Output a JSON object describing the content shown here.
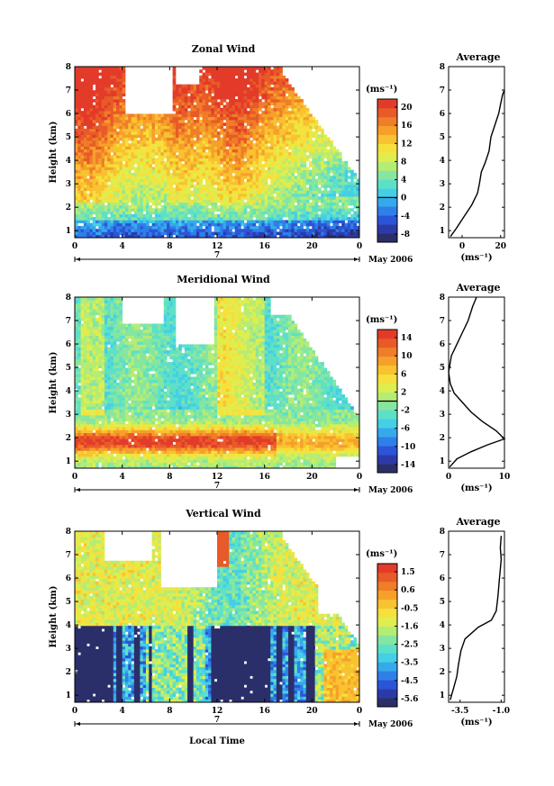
{
  "chart_data": [
    {
      "type": "heatmap",
      "title": "Zonal Wind",
      "ylabel": "Height (km)",
      "ylim": [
        0.7,
        8
      ],
      "yticks": [
        "1",
        "2",
        "3",
        "4",
        "5",
        "6",
        "7",
        "8"
      ],
      "xlim": [
        0,
        24
      ],
      "xticks": [
        "0",
        "4",
        "8",
        "12",
        "16",
        "20",
        "0"
      ],
      "day_label": "7",
      "date_label": "May 2006",
      "colorbar_unit": "(ms⁻¹)",
      "colorbar_ticks": [
        "20",
        "16",
        "12",
        "8",
        "4",
        "0",
        "-4",
        "-8"
      ],
      "colorbar_range": [
        -10,
        22
      ],
      "colorbar_contour": 0,
      "average": {
        "title": "Average",
        "xlabel": "(ms⁻¹)",
        "xticks": [
          "0",
          "20"
        ],
        "xlim": [
          -7,
          22
        ],
        "ylim": [
          0.7,
          8
        ],
        "yticks": [
          "1",
          "2",
          "3",
          "4",
          "5",
          "6",
          "7",
          "8"
        ],
        "profile_x": [
          -6,
          -3,
          1,
          5,
          8,
          9,
          10,
          12,
          14,
          15,
          17,
          19,
          20,
          21,
          22
        ],
        "profile_y": [
          0.75,
          1.1,
          1.6,
          2.1,
          2.6,
          3.0,
          3.5,
          3.9,
          4.4,
          5.0,
          5.5,
          6.0,
          6.4,
          6.8,
          7.0
        ]
      }
    },
    {
      "type": "heatmap",
      "title": "Meridional Wind",
      "ylabel": "Height (km)",
      "ylim": [
        0.7,
        8
      ],
      "yticks": [
        "1",
        "2",
        "3",
        "4",
        "5",
        "6",
        "7",
        "8"
      ],
      "xlim": [
        0,
        24
      ],
      "xticks": [
        "0",
        "4",
        "8",
        "12",
        "16",
        "20",
        "0"
      ],
      "day_label": "7",
      "date_label": "May 2006",
      "colorbar_unit": "(ms⁻¹)",
      "colorbar_ticks": [
        "14",
        "10",
        "6",
        "2",
        "-2",
        "-6",
        "-10",
        "-14"
      ],
      "colorbar_range": [
        -16,
        16
      ],
      "colorbar_contour": 0,
      "average": {
        "title": "Average",
        "xlabel": "(ms⁻¹)",
        "xticks": [
          "0",
          "10"
        ],
        "xlim": [
          0,
          10
        ],
        "ylim": [
          0.7,
          8
        ],
        "yticks": [
          "1",
          "2",
          "3",
          "4",
          "5",
          "6",
          "7",
          "8"
        ],
        "profile_x": [
          0.2,
          1.5,
          4,
          7,
          10,
          8.5,
          6,
          4,
          2.5,
          1,
          0.3,
          0,
          0.5,
          1.5,
          2.5,
          3.5,
          4.3,
          5
        ],
        "profile_y": [
          0.75,
          1.1,
          1.4,
          1.7,
          1.95,
          2.3,
          2.7,
          3.1,
          3.5,
          3.9,
          4.3,
          4.8,
          5.5,
          6.0,
          6.5,
          7.0,
          7.6,
          8.0
        ]
      }
    },
    {
      "type": "heatmap",
      "title": "Vertical Wind",
      "ylabel": "Height (km)",
      "xlabel": "Local Time",
      "ylim": [
        0.7,
        8
      ],
      "yticks": [
        "1",
        "2",
        "3",
        "4",
        "5",
        "6",
        "7",
        "8"
      ],
      "xlim": [
        0,
        24
      ],
      "xticks": [
        "0",
        "4",
        "8",
        "12",
        "16",
        "20",
        "0"
      ],
      "day_label": "7",
      "date_label": "May 2006",
      "colorbar_unit": "(ms⁻¹)",
      "colorbar_ticks": [
        "1.5",
        "0.6",
        "-0.5",
        "-1.6",
        "-2.5",
        "-3.5",
        "-4.5",
        "-5.6"
      ],
      "colorbar_range": [
        -6,
        2
      ],
      "average": {
        "title": "Average",
        "xlabel": "(ms⁻¹)",
        "xticks": [
          "-3.5",
          "-1.0"
        ],
        "xlim": [
          -4.2,
          -0.8
        ],
        "ylim": [
          0.7,
          8
        ],
        "yticks": [
          "1",
          "2",
          "3",
          "4",
          "5",
          "6",
          "7",
          "8"
        ],
        "profile_x": [
          -4.1,
          -3.9,
          -3.7,
          -3.6,
          -3.45,
          -3.2,
          -2.4,
          -1.6,
          -1.3,
          -1.2,
          -1.1,
          -1.0,
          -1.05,
          -1.0
        ],
        "profile_y": [
          0.8,
          1.3,
          1.8,
          2.3,
          2.9,
          3.4,
          3.9,
          4.2,
          4.6,
          5.2,
          6.0,
          6.8,
          7.3,
          7.8
        ]
      }
    }
  ]
}
